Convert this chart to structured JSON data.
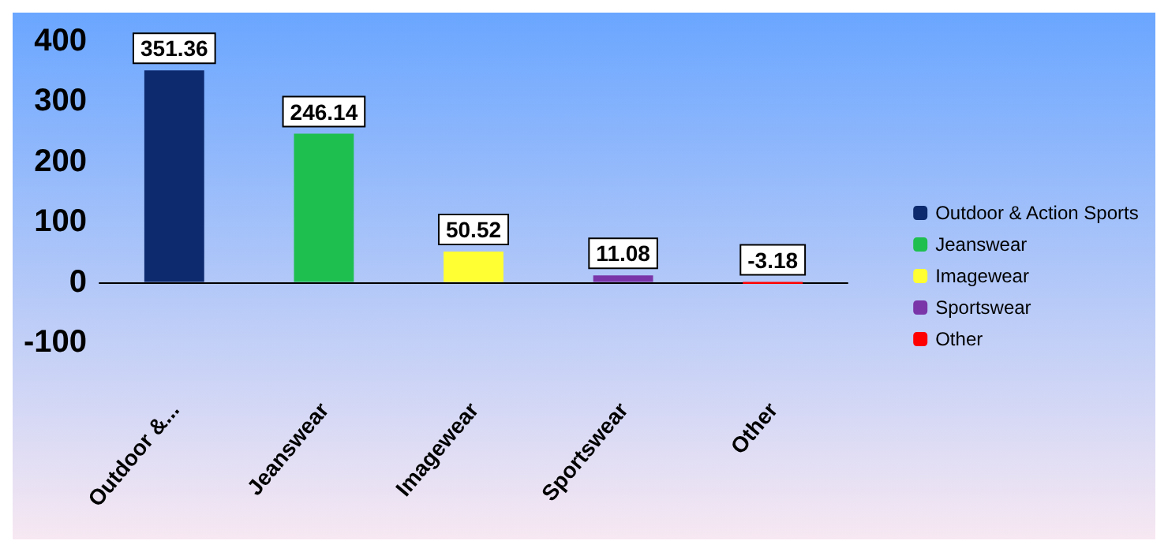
{
  "chart_data": {
    "type": "bar",
    "categories": [
      "Outdoor &...",
      "Jeanswear",
      "Imagewear",
      "Sportswear",
      "Other"
    ],
    "series": [
      {
        "name": "Outdoor & Action Sports",
        "color": "#0d2a6e",
        "values": [
          351.36,
          null,
          null,
          null,
          null
        ]
      },
      {
        "name": "Jeanswear",
        "color": "#1fbf4f",
        "values": [
          null,
          246.14,
          null,
          null,
          null
        ]
      },
      {
        "name": "Imagewear",
        "color": "#ffff33",
        "values": [
          null,
          null,
          50.52,
          null,
          null
        ]
      },
      {
        "name": "Sportswear",
        "color": "#7a35a8",
        "values": [
          null,
          null,
          null,
          11.08,
          null
        ]
      },
      {
        "name": "Other",
        "color": "#ff0000",
        "values": [
          null,
          null,
          null,
          null,
          -3.18
        ]
      }
    ],
    "ylim": [
      -100,
      400
    ],
    "yticks": [
      -100,
      0,
      100,
      200,
      300,
      400
    ],
    "data_labels": true,
    "legend": "right"
  }
}
